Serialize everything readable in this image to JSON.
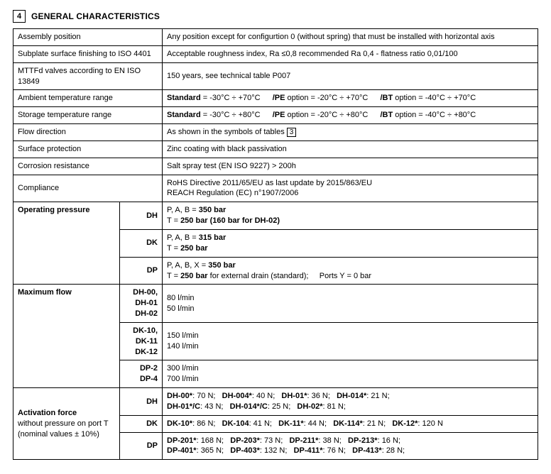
{
  "section": {
    "number": "4",
    "title": "GENERAL CHARACTERISTICS"
  },
  "rows": {
    "assembly_position": {
      "label": "Assembly position",
      "value": "Any position except for configurtion 0 (without spring) that must be installed with horizontal axis"
    },
    "subplate": {
      "label": "Subplate surface finishing to ISO 4401",
      "value": "Acceptable roughness index, Ra ≤0,8 recommended Ra 0,4 - flatness ratio 0,01/100"
    },
    "mttfd": {
      "label": "MTTFd valves according to EN ISO 13849",
      "value": "150 years, see technical table P007"
    },
    "ambient_temp": {
      "label": "Ambient temperature range",
      "std_label": "Standard",
      "std_val": " = -30°C ÷ +70°C",
      "pe_label": "/PE",
      "pe_val": " option = -20°C ÷ +70°C",
      "bt_label": "/BT",
      "bt_val": " option = -40°C ÷ +70°C"
    },
    "storage_temp": {
      "label": "Storage temperature range",
      "std_label": "Standard",
      "std_val": " = -30°C ÷ +80°C",
      "pe_label": "/PE",
      "pe_val": " option = -20°C ÷ +80°C",
      "bt_label": "/BT",
      "bt_val": " option = -40°C ÷ +80°C"
    },
    "flow_dir": {
      "label": "Flow direction",
      "prefix": "As shown in the symbols of tables ",
      "boxref": "3"
    },
    "surface": {
      "label": "Surface protection",
      "value": "Zinc coating with black passivation"
    },
    "corrosion": {
      "label": "Corrosion resistance",
      "value": "Salt spray test (EN ISO 9227) > 200h"
    },
    "compliance": {
      "label": "Compliance",
      "line1": "RoHS Directive 2011/65/EU as last update by 2015/863/EU",
      "line2": "REACH Regulation (EC) n°1907/2006"
    },
    "op_pressure": {
      "label": "Operating pressure",
      "dh": {
        "tag": "DH",
        "l1a": "P, A, B = ",
        "l1b": "350 bar",
        "l2a": "T = ",
        "l2b": "250 bar (160 bar for DH-02)"
      },
      "dk": {
        "tag": "DK",
        "l1a": "P, A, B = ",
        "l1b": "315 bar",
        "l2a": "T = ",
        "l2b": "250 bar"
      },
      "dp": {
        "tag": "DP",
        "l1a": "P, A, B, X = ",
        "l1b": "350 bar",
        "l2a": "T = ",
        "l2b": "250 bar",
        "l2c": " for external drain (standard);",
        "l2d": "Ports Y = 0 bar"
      }
    },
    "max_flow": {
      "label": "Maximum flow",
      "r1": {
        "tag1": "DH-00, DH-01",
        "tag2": "DH-02",
        "v1": "80 l/min",
        "v2": "50 l/min"
      },
      "r2": {
        "tag1": "DK-10, DK-11",
        "tag2": "DK-12",
        "v1": "150 l/min",
        "v2": "140 l/min"
      },
      "r3": {
        "tag1": "DP-2",
        "tag2": "DP-4",
        "v1": "300 l/min",
        "v2": "700 l/min"
      }
    },
    "activation": {
      "label_l1": "Activation force",
      "label_l2": "without pressure on port T",
      "label_l3": "(nominal values ± 10%)",
      "dh": {
        "tag": "DH",
        "a1k": "DH-00*",
        "a1v": ": 70 N;",
        "a2k": "DH-004*",
        "a2v": ": 40 N;",
        "a3k": "DH-01*",
        "a3v": ": 36 N;",
        "a4k": "DH-014*",
        "a4v": ": 21 N;",
        "b1k": "DH-01*/C",
        "b1v": ": 43 N;",
        "b2k": "DH-014*/C",
        "b2v": ": 25 N;",
        "b3k": "DH-02*",
        "b3v": ": 81 N;"
      },
      "dk": {
        "tag": "DK",
        "a1k": "DK-10*",
        "a1v": ": 86 N;",
        "a2k": "DK-104",
        "a2v": ": 41 N;",
        "a3k": "DK-11*",
        "a3v": ": 44 N;",
        "a4k": "DK-114*",
        "a4v": ": 21 N;",
        "a5k": "DK-12*",
        "a5v": ": 120 N"
      },
      "dp": {
        "tag": "DP",
        "a1k": "DP-201*",
        "a1v": ": 168 N;",
        "a2k": "DP-203*",
        "a2v": ": 73 N;",
        "a3k": "DP-211*",
        "a3v": ": 38 N;",
        "a4k": "DP-213*",
        "a4v": ": 16 N;",
        "b1k": "DP-401*",
        "b1v": ": 365 N;",
        "b2k": "DP-403*",
        "b2v": ": 132 N;",
        "b3k": "DP-411*",
        "b3v": ": 76 N;",
        "b4k": "DP-413*",
        "b4v": ": 28 N;"
      }
    }
  }
}
